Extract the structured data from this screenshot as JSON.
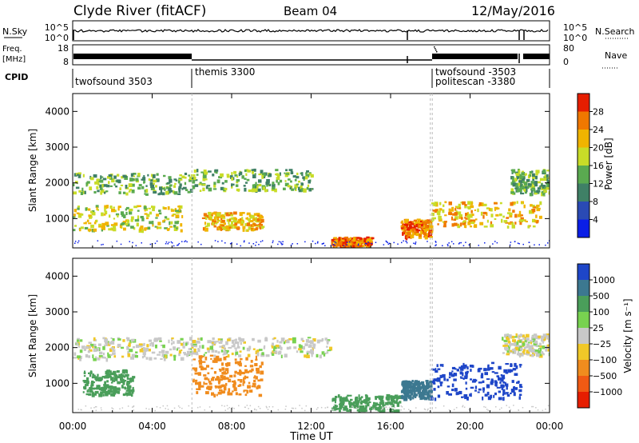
{
  "header": {
    "station": "Clyde River (fitACF)",
    "beam": "Beam 04",
    "date": "12/May/2016"
  },
  "summary": {
    "nsky_label": "N.Sky",
    "nsearch_label": "N.Search",
    "freq_label_1": "Freq.",
    "freq_label_2": "[MHz]",
    "nave_label": "Nave",
    "cpid_label": "CPID",
    "nsky_ticks": [
      "10^5",
      "10^0"
    ],
    "nsearch_ticks": [
      "10^5",
      "10^0"
    ],
    "freq_ticks": [
      "18",
      "8"
    ],
    "nave_ticks": [
      "80",
      "0"
    ]
  },
  "cpid_segments": [
    {
      "label": "twofsound 3503",
      "start_hour": 0.0
    },
    {
      "label": "themis 3300",
      "start_hour": 6.0
    },
    {
      "label": "twofsound -3503",
      "start_hour": 18.0
    },
    {
      "label": "politescan -3380",
      "start_hour": 18.0
    }
  ],
  "chart_data": [
    {
      "type": "heatmap",
      "name": "power",
      "xlabel": "Time UT",
      "ylabel": "Slant Range [km]",
      "xlim": [
        0,
        24
      ],
      "ylim": [
        180,
        4500
      ],
      "x_ticks": [
        "00:00",
        "04:00",
        "08:00",
        "12:00",
        "16:00",
        "20:00",
        "00:00"
      ],
      "y_ticks": [
        1000,
        2000,
        3000,
        4000
      ],
      "colorbar": {
        "label": "Power [dB]",
        "ticks": [
          "4",
          "8",
          "12",
          "16",
          "20",
          "24",
          "28"
        ],
        "colors": [
          "#0a1ee6",
          "#2a4ab4",
          "#3f8066",
          "#5aaa50",
          "#c8dc28",
          "#f0b400",
          "#f07800",
          "#e61e00"
        ]
      },
      "features": [
        {
          "t0": 0.0,
          "t1": 6.0,
          "r0": 1700,
          "r1": 2300,
          "level": 3
        },
        {
          "t0": 0.0,
          "t1": 5.5,
          "r0": 700,
          "r1": 1400,
          "level": 4
        },
        {
          "t0": 6.0,
          "t1": 12.0,
          "r0": 1800,
          "r1": 2400,
          "level": 3
        },
        {
          "t0": 6.5,
          "t1": 9.5,
          "r0": 700,
          "r1": 1200,
          "level": 5
        },
        {
          "t0": 13.0,
          "t1": 15.0,
          "r0": 250,
          "r1": 500,
          "level": 6
        },
        {
          "t0": 16.5,
          "t1": 18.0,
          "r0": 500,
          "r1": 1000,
          "level": 6
        },
        {
          "t0": 18.0,
          "t1": 23.5,
          "r0": 800,
          "r1": 1500,
          "level": 5
        },
        {
          "t0": 22.0,
          "t1": 24.0,
          "r0": 1700,
          "r1": 2400,
          "level": 3
        }
      ]
    },
    {
      "type": "heatmap",
      "name": "velocity",
      "xlabel": "Time UT",
      "ylabel": "Slant Range [km]",
      "xlim": [
        0,
        24
      ],
      "ylim": [
        180,
        4500
      ],
      "x_ticks": [
        "00:00",
        "04:00",
        "08:00",
        "12:00",
        "16:00",
        "20:00",
        "00:00"
      ],
      "y_ticks": [
        1000,
        2000,
        3000,
        4000
      ],
      "colorbar": {
        "label": "Velocity [m s⁻¹]",
        "ticks": [
          "1000",
          "500",
          "100",
          "25",
          "−25",
          "−100",
          "−500",
          "−1000"
        ],
        "colors": [
          "#1e46c8",
          "#3c7890",
          "#4a9e5a",
          "#78d250",
          "#c8c8c8",
          "#f0c828",
          "#f08c1e",
          "#f05a14",
          "#e61e00"
        ]
      },
      "features": [
        {
          "t0": 0.0,
          "t1": 6.0,
          "r0": 1700,
          "r1": 2300,
          "velocity": 0
        },
        {
          "t0": 0.5,
          "t1": 3.0,
          "r0": 700,
          "r1": 1400,
          "velocity": 200
        },
        {
          "t0": 6.0,
          "t1": 9.5,
          "r0": 700,
          "r1": 1800,
          "velocity": -300
        },
        {
          "t0": 6.0,
          "t1": 13.0,
          "r0": 1800,
          "r1": 2300,
          "velocity": 0
        },
        {
          "t0": 13.0,
          "t1": 16.5,
          "r0": 250,
          "r1": 700,
          "velocity": 200
        },
        {
          "t0": 16.5,
          "t1": 18.0,
          "r0": 600,
          "r1": 1100,
          "velocity": 600
        },
        {
          "t0": 18.0,
          "t1": 22.5,
          "r0": 600,
          "r1": 1600,
          "velocity": 800
        },
        {
          "t0": 21.5,
          "t1": 24.0,
          "r0": 1800,
          "r1": 2400,
          "velocity": 0
        }
      ]
    }
  ]
}
